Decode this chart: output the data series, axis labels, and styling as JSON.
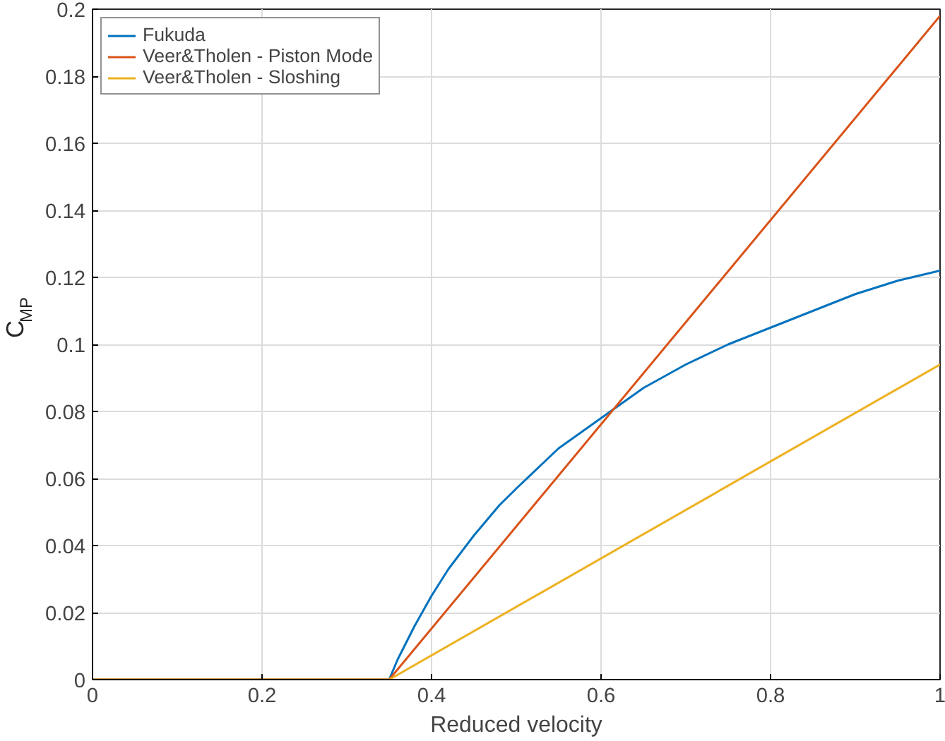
{
  "chart_data": {
    "type": "line",
    "xlabel": "Reduced velocity",
    "ylabel": "C$_{MP}$",
    "xlim": [
      0,
      1
    ],
    "ylim": [
      0,
      0.2
    ],
    "xticks": [
      0,
      0.2,
      0.4,
      0.6,
      0.8,
      1
    ],
    "yticks": [
      0,
      0.02,
      0.04,
      0.06,
      0.08,
      0.1,
      0.12,
      0.14,
      0.16,
      0.18,
      0.2
    ],
    "grid": true,
    "legend": "top left",
    "marker": "none",
    "line_style": "solid",
    "series": [
      {
        "name": "Fukuda",
        "color": "#0072bd",
        "x": [
          0,
          0.35,
          0.36,
          0.37,
          0.38,
          0.4,
          0.42,
          0.45,
          0.48,
          0.5,
          0.55,
          0.6,
          0.65,
          0.7,
          0.75,
          0.8,
          0.85,
          0.9,
          0.95,
          1.0
        ],
        "values": [
          0,
          0,
          0.006,
          0.011,
          0.016,
          0.025,
          0.033,
          0.043,
          0.052,
          0.057,
          0.069,
          0.078,
          0.087,
          0.094,
          0.1,
          0.105,
          0.11,
          0.115,
          0.119,
          0.122
        ]
      },
      {
        "name": "Veer&Tholen - Piston Mode",
        "color": "#d95319",
        "x": [
          0,
          0.35,
          1.0
        ],
        "values": [
          0,
          0,
          0.198
        ]
      },
      {
        "name": "Veer&Tholen - Sloshing",
        "color": "#edb120",
        "x": [
          0,
          0.35,
          1.0
        ],
        "values": [
          0,
          0,
          0.094
        ]
      }
    ]
  }
}
